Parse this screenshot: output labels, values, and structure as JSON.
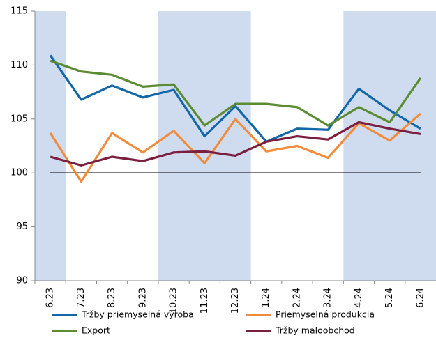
{
  "chart_data": {
    "type": "line",
    "categories": [
      "6.23",
      "7.23",
      "8.23",
      "9.23",
      "10.23",
      "11.23",
      "12.23",
      "1.24",
      "2.24",
      "3.24",
      "4.24",
      "5.24",
      "6.24"
    ],
    "series": [
      {
        "name": "Tržby priemyselná výroba",
        "color": "#1267a8",
        "values": [
          110.9,
          106.8,
          108.1,
          107.0,
          107.7,
          103.4,
          106.2,
          102.9,
          104.1,
          104.0,
          107.8,
          105.8,
          104.1
        ]
      },
      {
        "name": "Priemyselná produkcia",
        "color": "#f28c3c",
        "values": [
          103.7,
          99.2,
          103.7,
          101.9,
          103.9,
          100.9,
          105.0,
          102.0,
          102.5,
          101.4,
          104.6,
          103.0,
          105.5
        ]
      },
      {
        "name": "Export",
        "color": "#5b8c32",
        "values": [
          110.4,
          109.4,
          109.1,
          108.0,
          108.2,
          104.4,
          106.4,
          106.4,
          106.1,
          104.4,
          106.1,
          104.7,
          108.8
        ]
      },
      {
        "name": "Tržby maloobchod",
        "color": "#7a1f3f",
        "values": [
          101.5,
          100.7,
          101.5,
          101.1,
          101.9,
          102.0,
          101.6,
          102.9,
          103.4,
          103.1,
          104.7,
          104.1,
          103.6
        ]
      }
    ],
    "ylim": [
      90,
      115
    ],
    "yticks": [
      90,
      95,
      100,
      105,
      110,
      115
    ],
    "reference_line": 100,
    "reference_color": "#000000",
    "shaded_bands": [
      [
        "6.23",
        "6.23"
      ],
      [
        "10.23",
        "12.23"
      ],
      [
        "4.24",
        "6.24"
      ]
    ],
    "band_color": "#cfdbef"
  }
}
